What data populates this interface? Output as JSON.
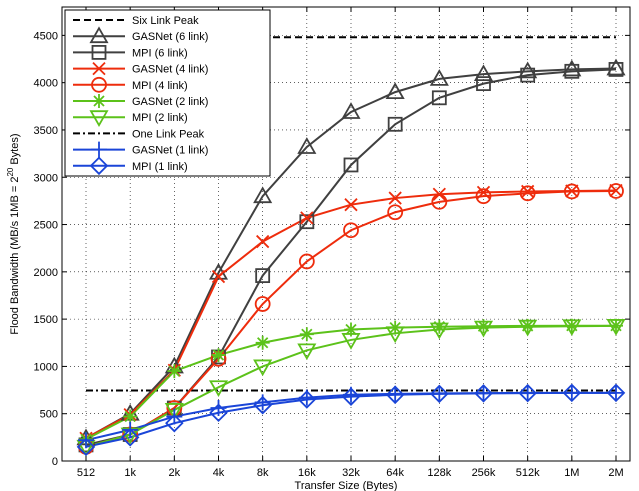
{
  "chart_data": {
    "type": "line",
    "title": "",
    "xlabel": "Transfer Size (Bytes)",
    "ylabel": "Flood Bandwidth (MB/s 1MB = 2^20 Bytes)",
    "ylabel_parts": {
      "pre": "Flood Bandwidth (MB/s 1MB = 2",
      "exp": "20",
      "post": " Bytes)"
    },
    "categories": [
      "512",
      "1k",
      "2k",
      "4k",
      "8k",
      "16k",
      "32k",
      "64k",
      "128k",
      "256k",
      "512k",
      "1M",
      "2M"
    ],
    "ylim": [
      0,
      4800
    ],
    "yticks": [
      0,
      500,
      1000,
      1500,
      2000,
      2500,
      3000,
      3500,
      4000,
      4500
    ],
    "grid": true,
    "legend_position": "top-left",
    "reference_lines": [
      {
        "name": "Six Link Peak",
        "value": 4480,
        "style": "dashed",
        "color": "#000000"
      },
      {
        "name": "One Link Peak",
        "value": 745,
        "style": "dashdot",
        "color": "#000000"
      }
    ],
    "series": [
      {
        "name": "GASNet (6 link)",
        "color": "#404040",
        "marker": "triangle-up",
        "values": [
          240,
          500,
          1000,
          1990,
          2800,
          3320,
          3690,
          3900,
          4040,
          4090,
          4120,
          4140,
          4150
        ]
      },
      {
        "name": "MPI (6 link)",
        "color": "#404040",
        "marker": "square",
        "values": [
          170,
          280,
          560,
          1100,
          1960,
          2530,
          3130,
          3560,
          3840,
          3990,
          4080,
          4120,
          4140
        ]
      },
      {
        "name": "GASNet (4 link)",
        "color": "#ee2c0c",
        "marker": "x",
        "values": [
          240,
          490,
          960,
          1950,
          2320,
          2570,
          2710,
          2780,
          2820,
          2840,
          2850,
          2855,
          2860
        ]
      },
      {
        "name": "MPI (4 link)",
        "color": "#ee2c0c",
        "marker": "circle",
        "values": [
          150,
          280,
          560,
          1080,
          1660,
          2110,
          2440,
          2630,
          2740,
          2800,
          2830,
          2850,
          2855
        ]
      },
      {
        "name": "GASNet (2 link)",
        "color": "#5cc21a",
        "marker": "asterisk",
        "values": [
          230,
          470,
          950,
          1120,
          1250,
          1340,
          1390,
          1410,
          1420,
          1425,
          1428,
          1430,
          1430
        ]
      },
      {
        "name": "MPI (2 link)",
        "color": "#5cc21a",
        "marker": "triangle-down",
        "values": [
          150,
          280,
          540,
          780,
          1000,
          1170,
          1280,
          1350,
          1390,
          1410,
          1420,
          1425,
          1428
        ]
      },
      {
        "name": "GASNet (1 link)",
        "color": "#1a45d8",
        "marker": "plus",
        "values": [
          220,
          330,
          470,
          560,
          620,
          670,
          700,
          710,
          715,
          718,
          720,
          720,
          720
        ]
      },
      {
        "name": "MPI (1 link)",
        "color": "#1a45d8",
        "marker": "diamond",
        "values": [
          150,
          250,
          400,
          510,
          590,
          650,
          680,
          700,
          710,
          715,
          718,
          720,
          720
        ]
      }
    ],
    "legend": [
      {
        "label": "Six Link Peak",
        "ref": 0
      },
      {
        "label": "GASNet (6 link)",
        "series": 0
      },
      {
        "label": "MPI (6 link)",
        "series": 1
      },
      {
        "label": "GASNet (4 link)",
        "series": 2
      },
      {
        "label": "MPI (4 link)",
        "series": 3
      },
      {
        "label": "GASNet (2 link)",
        "series": 4
      },
      {
        "label": "MPI (2 link)",
        "series": 5
      },
      {
        "label": "One Link Peak",
        "ref": 1
      },
      {
        "label": "GASNet (1 link)",
        "series": 6
      },
      {
        "label": "MPI (1 link)",
        "series": 7
      }
    ]
  }
}
